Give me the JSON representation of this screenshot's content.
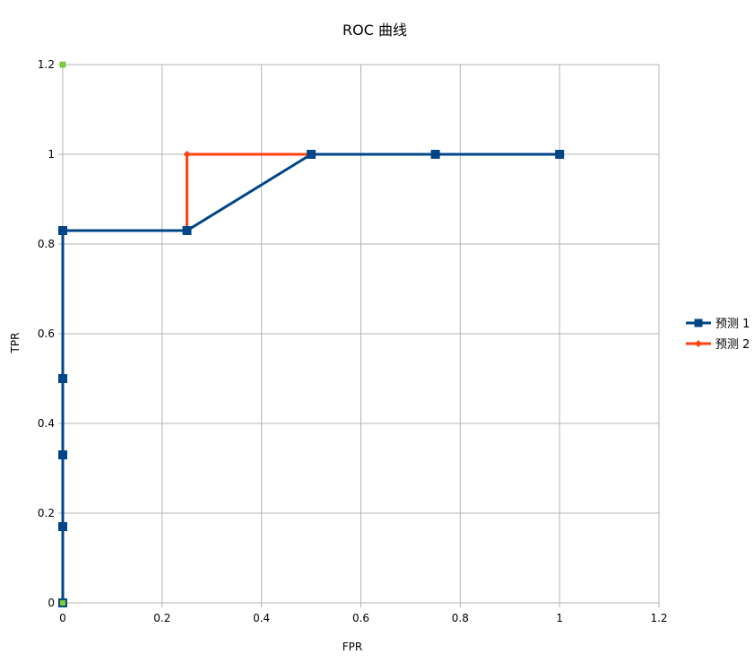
{
  "chart_data": {
    "type": "line",
    "title": "ROC 曲线",
    "xlabel": "FPR",
    "ylabel": "TPR",
    "xlim": [
      0,
      1.2
    ],
    "ylim": [
      0,
      1.2
    ],
    "x_ticks": [
      "0",
      "0.2",
      "0.4",
      "0.6",
      "0.8",
      "1",
      "1.2"
    ],
    "y_ticks": [
      "0",
      "0.2",
      "0.4",
      "0.6",
      "0.8",
      "1",
      "1.2"
    ],
    "grid": true,
    "legend_position": "right",
    "series": [
      {
        "name": "预测 1",
        "color": "#004586",
        "marker": "square",
        "x": [
          0,
          0,
          0,
          0,
          0,
          0.25,
          0.5,
          0.75,
          1
        ],
        "y": [
          0,
          0.17,
          0.33,
          0.5,
          0.83,
          0.83,
          1,
          1,
          1
        ]
      },
      {
        "name": "预测 2",
        "color": "#ff420e",
        "marker": "diamond",
        "x": [
          0.25,
          0.25,
          0.5
        ],
        "y": [
          0.83,
          1,
          1
        ]
      }
    ],
    "extra_points": [
      {
        "x": 0,
        "y": 0,
        "color": "#7fd13b",
        "marker": "square"
      },
      {
        "x": 0,
        "y": 1.2,
        "color": "#7fd13b",
        "marker": "square"
      }
    ]
  }
}
